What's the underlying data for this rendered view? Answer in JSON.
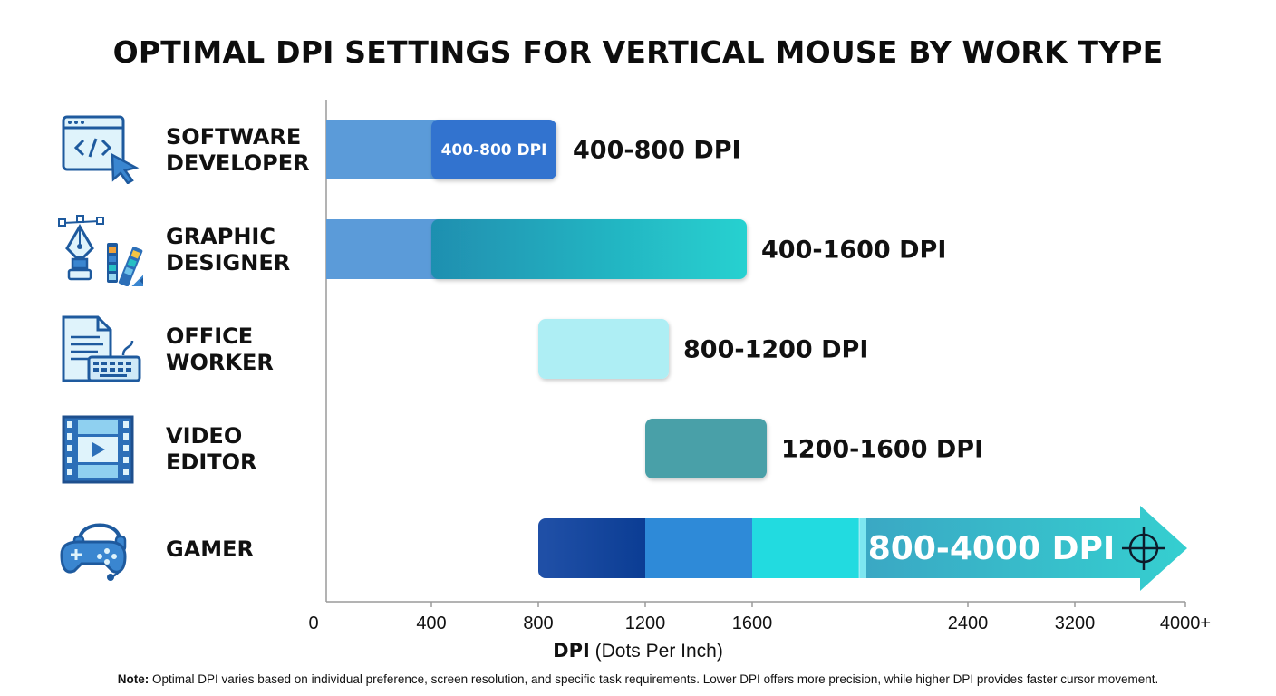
{
  "title": "OPTIMAL DPI SETTINGS FOR VERTICAL MOUSE BY WORK TYPE",
  "categories": [
    {
      "lines": [
        "SOFTWARE",
        "DEVELOPER"
      ],
      "icon": "code-window-cursor-icon"
    },
    {
      "lines": [
        "GRAPHIC",
        "DESIGNER"
      ],
      "icon": "pen-tool-swatches-icon"
    },
    {
      "lines": [
        "OFFICE",
        "WORKER"
      ],
      "icon": "document-keyboard-icon"
    },
    {
      "lines": [
        "VIDEO",
        "EDITOR"
      ],
      "icon": "film-strip-play-icon"
    },
    {
      "lines": [
        "GAMER"
      ],
      "icon": "gamepad-headset-icon"
    }
  ],
  "chart_data": {
    "type": "bar",
    "orientation": "horizontal-range",
    "categories": [
      "SOFTWARE DEVELOPER",
      "GRAPHIC DESIGNER",
      "OFFICE WORKER",
      "VIDEO EDITOR",
      "GAMER"
    ],
    "ranges": [
      {
        "category": "SOFTWARE DEVELOPER",
        "from": 400,
        "to": 800,
        "label": "400-800 DPI",
        "inner_label": "400-800 DPI"
      },
      {
        "category": "GRAPHIC DESIGNER",
        "from": 400,
        "to": 1600,
        "label": "400-1600 DPI"
      },
      {
        "category": "OFFICE WORKER",
        "from": 800,
        "to": 1200,
        "label": "800-1200 DPI"
      },
      {
        "category": "VIDEO EDITOR",
        "from": 1200,
        "to": 1600,
        "label": "1200-1600 DPI"
      },
      {
        "category": "GAMER",
        "from": 800,
        "to": 4000,
        "label": "800-4000 DPI"
      }
    ],
    "x_ticks": [
      "0",
      "400",
      "800",
      "1200",
      "1600",
      "2400",
      "3200",
      "4000+"
    ],
    "x_tick_values": [
      0,
      400,
      800,
      1200,
      1600,
      2400,
      3200,
      4000
    ],
    "xlabel_bold": "DPI",
    "xlabel_rest": "(Dots Per Inch)",
    "colors": {
      "software": [
        "#5b9bd9",
        "#3273cf"
      ],
      "graphic": [
        "#5b9bd9",
        "#1f8fb0",
        "#27d1d0"
      ],
      "office": "#aeeef4",
      "video": "#4aa0a8",
      "gamer": [
        "#1f4fa6",
        "#0b3d94",
        "#2e8ad8",
        "#22dbe0",
        "#7de6f0",
        "#3aa8c4",
        "#35cfd0"
      ],
      "axis": "#9a9a9a"
    }
  },
  "note_bold": "Note:",
  "note_text": " Optimal DPI varies based on individual preference, screen resolution, and specific task requirements. Lower DPI offers more precision, while higher DPI provides faster cursor movement."
}
